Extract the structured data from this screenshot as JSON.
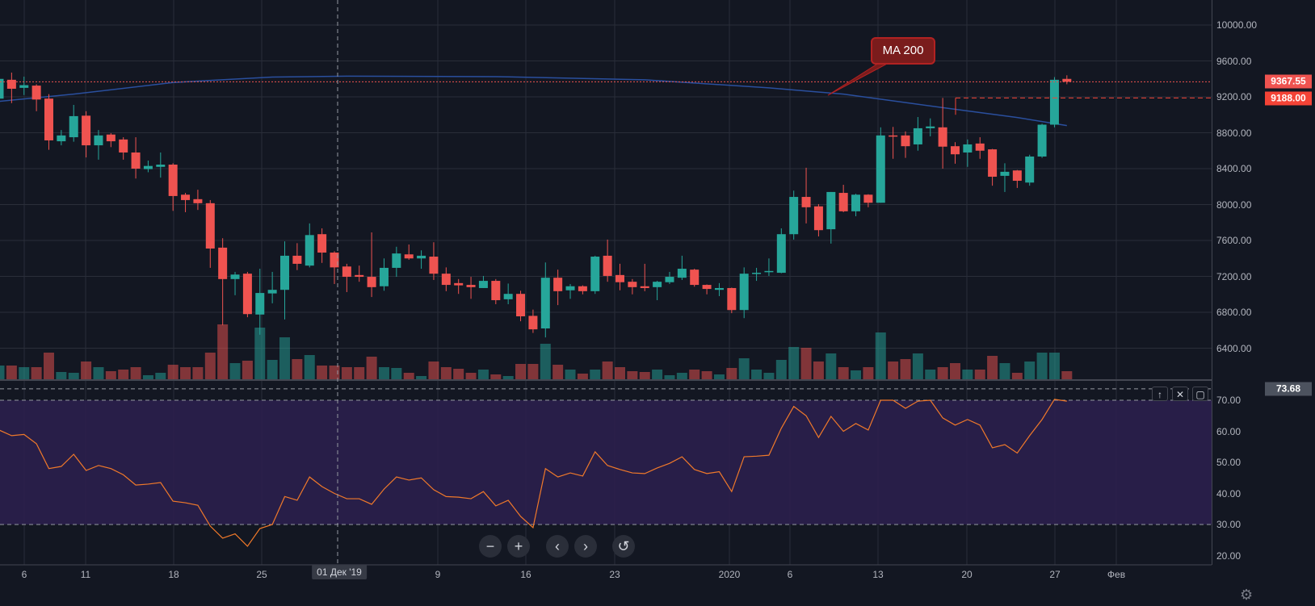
{
  "chart_data": {
    "type": "candlestick",
    "title": "",
    "start_date": "2019-11-04",
    "price_axis": {
      "ticks": [
        "10000.00",
        "9600.00",
        "9200.00",
        "8800.00",
        "8400.00",
        "8000.00",
        "7600.00",
        "7200.00",
        "6800.00",
        "6400.00"
      ],
      "tick_values": [
        10000,
        9600,
        9200,
        8800,
        8400,
        8000,
        7600,
        7200,
        6800,
        6400
      ],
      "range": [
        6000,
        10300
      ]
    },
    "rsi_axis": {
      "ticks": [
        "70.00",
        "60.00",
        "50.00",
        "40.00",
        "30.00",
        "20.00"
      ],
      "tick_values": [
        70,
        60,
        50,
        40,
        30,
        20
      ],
      "upper_band": 70,
      "lower_band": 30
    },
    "x_ticks": [
      "6",
      "11",
      "18",
      "25",
      "01 Дек '19",
      "9",
      "16",
      "23",
      "2020",
      "6",
      "13",
      "20",
      "27",
      "Фев"
    ],
    "last_price": {
      "label": "9367.55",
      "value": 9367.55,
      "color": "#ef5350"
    },
    "level_line": {
      "label": "9188.00",
      "value": 9188.0,
      "color": "#f44336"
    },
    "rsi_crosshair": {
      "label": "73.68",
      "value": 73.68
    },
    "annotation": {
      "text": "MA 200"
    },
    "colors": {
      "up": "#26a69a",
      "down": "#ef5350",
      "ma": "#2a4f9e",
      "rsi": "#f0792a",
      "band": "#2b1f4d",
      "background": "#131722",
      "grid": "#2a2e39"
    },
    "ma200": [
      [
        0,
        9150
      ],
      [
        6,
        9230
      ],
      [
        14,
        9360
      ],
      [
        22,
        9420
      ],
      [
        28,
        9430
      ],
      [
        40,
        9425
      ],
      [
        52,
        9390
      ],
      [
        62,
        9300
      ],
      [
        68,
        9230
      ],
      [
        76,
        9080
      ],
      [
        82,
        8970
      ],
      [
        86,
        8880
      ]
    ],
    "candles": [
      {
        "o": 9180,
        "h": 9450,
        "l": 9150,
        "c": 9400,
        "v": 17,
        "rsi": 60.4
      },
      {
        "o": 9390,
        "h": 9470,
        "l": 9130,
        "c": 9290,
        "v": 17,
        "rsi": 58.6
      },
      {
        "o": 9300,
        "h": 9425,
        "l": 9220,
        "c": 9330,
        "v": 15,
        "rsi": 59
      },
      {
        "o": 9325,
        "h": 9340,
        "l": 9040,
        "c": 9170,
        "v": 15,
        "rsi": 56
      },
      {
        "o": 9180,
        "h": 9230,
        "l": 8610,
        "c": 8715,
        "v": 33,
        "rsi": 48
      },
      {
        "o": 8705,
        "h": 8830,
        "l": 8660,
        "c": 8770,
        "v": 9,
        "rsi": 48.7
      },
      {
        "o": 8750,
        "h": 9110,
        "l": 8700,
        "c": 8985,
        "v": 8,
        "rsi": 52.6
      },
      {
        "o": 8990,
        "h": 9040,
        "l": 8525,
        "c": 8660,
        "v": 22,
        "rsi": 47.4
      },
      {
        "o": 8660,
        "h": 8830,
        "l": 8500,
        "c": 8770,
        "v": 15,
        "rsi": 49
      },
      {
        "o": 8780,
        "h": 8795,
        "l": 8640,
        "c": 8705,
        "v": 10,
        "rsi": 48
      },
      {
        "o": 8725,
        "h": 8750,
        "l": 8500,
        "c": 8580,
        "v": 12,
        "rsi": 46
      },
      {
        "o": 8580,
        "h": 8750,
        "l": 8290,
        "c": 8400,
        "v": 15,
        "rsi": 42.7
      },
      {
        "o": 8395,
        "h": 8490,
        "l": 8360,
        "c": 8430,
        "v": 5,
        "rsi": 43
      },
      {
        "o": 8420,
        "h": 8580,
        "l": 8300,
        "c": 8445,
        "v": 8,
        "rsi": 43.5
      },
      {
        "o": 8445,
        "h": 8460,
        "l": 7930,
        "c": 8095,
        "v": 18,
        "rsi": 37.5
      },
      {
        "o": 8110,
        "h": 8130,
        "l": 7915,
        "c": 8050,
        "v": 15,
        "rsi": 37
      },
      {
        "o": 8060,
        "h": 8165,
        "l": 7940,
        "c": 8015,
        "v": 15,
        "rsi": 36.2
      },
      {
        "o": 8015,
        "h": 8050,
        "l": 7295,
        "c": 7510,
        "v": 33,
        "rsi": 29.5
      },
      {
        "o": 7520,
        "h": 7625,
        "l": 6655,
        "c": 7170,
        "v": 68,
        "rsi": 25.6
      },
      {
        "o": 7170,
        "h": 7250,
        "l": 6990,
        "c": 7220,
        "v": 20,
        "rsi": 27
      },
      {
        "o": 7230,
        "h": 7250,
        "l": 6745,
        "c": 6780,
        "v": 23,
        "rsi": 23
      },
      {
        "o": 6775,
        "h": 7285,
        "l": 6550,
        "c": 7015,
        "v": 64,
        "rsi": 28.7
      },
      {
        "o": 7010,
        "h": 7250,
        "l": 6900,
        "c": 7050,
        "v": 24,
        "rsi": 30
      },
      {
        "o": 7050,
        "h": 7590,
        "l": 6720,
        "c": 7430,
        "v": 52,
        "rsi": 39
      },
      {
        "o": 7430,
        "h": 7570,
        "l": 7270,
        "c": 7340,
        "v": 25,
        "rsi": 37.8
      },
      {
        "o": 7320,
        "h": 7790,
        "l": 7300,
        "c": 7660,
        "v": 30,
        "rsi": 45.3
      },
      {
        "o": 7670,
        "h": 7735,
        "l": 7350,
        "c": 7465,
        "v": 17,
        "rsi": 42.2
      },
      {
        "o": 7465,
        "h": 7480,
        "l": 7115,
        "c": 7300,
        "v": 17,
        "rsi": 40
      },
      {
        "o": 7310,
        "h": 7340,
        "l": 7025,
        "c": 7195,
        "v": 15,
        "rsi": 38.3
      },
      {
        "o": 7215,
        "h": 7320,
        "l": 7140,
        "c": 7195,
        "v": 15,
        "rsi": 38.3
      },
      {
        "o": 7195,
        "h": 7690,
        "l": 6970,
        "c": 7080,
        "v": 28,
        "rsi": 36.5
      },
      {
        "o": 7090,
        "h": 7400,
        "l": 7040,
        "c": 7295,
        "v": 15,
        "rsi": 41.4
      },
      {
        "o": 7295,
        "h": 7530,
        "l": 7195,
        "c": 7455,
        "v": 14,
        "rsi": 45.3
      },
      {
        "o": 7445,
        "h": 7555,
        "l": 7385,
        "c": 7400,
        "v": 8,
        "rsi": 44.3
      },
      {
        "o": 7400,
        "h": 7490,
        "l": 7285,
        "c": 7430,
        "v": 4,
        "rsi": 45
      },
      {
        "o": 7420,
        "h": 7580,
        "l": 7160,
        "c": 7230,
        "v": 22,
        "rsi": 41.2
      },
      {
        "o": 7230,
        "h": 7300,
        "l": 7035,
        "c": 7105,
        "v": 15,
        "rsi": 39
      },
      {
        "o": 7125,
        "h": 7170,
        "l": 7005,
        "c": 7100,
        "v": 13,
        "rsi": 38.8
      },
      {
        "o": 7105,
        "h": 7195,
        "l": 6950,
        "c": 7080,
        "v": 8,
        "rsi": 38.3
      },
      {
        "o": 7070,
        "h": 7205,
        "l": 7070,
        "c": 7150,
        "v": 12,
        "rsi": 40.6
      },
      {
        "o": 7150,
        "h": 7170,
        "l": 6890,
        "c": 6935,
        "v": 6,
        "rsi": 36
      },
      {
        "o": 6945,
        "h": 7120,
        "l": 6890,
        "c": 7005,
        "v": 4,
        "rsi": 37.8
      },
      {
        "o": 7005,
        "h": 7040,
        "l": 6700,
        "c": 6755,
        "v": 19,
        "rsi": 32.6
      },
      {
        "o": 6760,
        "h": 6830,
        "l": 6570,
        "c": 6610,
        "v": 19,
        "rsi": 29
      },
      {
        "o": 6620,
        "h": 7355,
        "l": 6520,
        "c": 7185,
        "v": 44,
        "rsi": 48
      },
      {
        "o": 7185,
        "h": 7275,
        "l": 6880,
        "c": 7035,
        "v": 18,
        "rsi": 45.3
      },
      {
        "o": 7045,
        "h": 7115,
        "l": 6950,
        "c": 7090,
        "v": 12,
        "rsi": 46.6
      },
      {
        "o": 7090,
        "h": 7100,
        "l": 7000,
        "c": 7035,
        "v": 7,
        "rsi": 45.6
      },
      {
        "o": 7035,
        "h": 7430,
        "l": 7005,
        "c": 7420,
        "v": 12,
        "rsi": 53.4
      },
      {
        "o": 7430,
        "h": 7610,
        "l": 7140,
        "c": 7205,
        "v": 22,
        "rsi": 49
      },
      {
        "o": 7215,
        "h": 7340,
        "l": 7045,
        "c": 7135,
        "v": 15,
        "rsi": 47.7
      },
      {
        "o": 7140,
        "h": 7170,
        "l": 7000,
        "c": 7080,
        "v": 10,
        "rsi": 46.6
      },
      {
        "o": 7090,
        "h": 7340,
        "l": 7035,
        "c": 7070,
        "v": 9,
        "rsi": 46.4
      },
      {
        "o": 7080,
        "h": 7150,
        "l": 6935,
        "c": 7140,
        "v": 12,
        "rsi": 48.2
      },
      {
        "o": 7135,
        "h": 7250,
        "l": 7115,
        "c": 7195,
        "v": 5,
        "rsi": 49.7
      },
      {
        "o": 7185,
        "h": 7430,
        "l": 7160,
        "c": 7285,
        "v": 8,
        "rsi": 51.8
      },
      {
        "o": 7275,
        "h": 7285,
        "l": 7085,
        "c": 7105,
        "v": 12,
        "rsi": 47.7
      },
      {
        "o": 7105,
        "h": 7110,
        "l": 7000,
        "c": 7060,
        "v": 10,
        "rsi": 46.4
      },
      {
        "o": 7050,
        "h": 7125,
        "l": 6980,
        "c": 7070,
        "v": 6,
        "rsi": 47
      },
      {
        "o": 7070,
        "h": 7075,
        "l": 6790,
        "c": 6825,
        "v": 14,
        "rsi": 40.6
      },
      {
        "o": 6825,
        "h": 7300,
        "l": 6735,
        "c": 7230,
        "v": 26,
        "rsi": 51.8
      },
      {
        "o": 7230,
        "h": 7295,
        "l": 7150,
        "c": 7240,
        "v": 12,
        "rsi": 52
      },
      {
        "o": 7250,
        "h": 7400,
        "l": 7205,
        "c": 7260,
        "v": 8,
        "rsi": 52.3
      },
      {
        "o": 7240,
        "h": 7735,
        "l": 7235,
        "c": 7670,
        "v": 24,
        "rsi": 61
      },
      {
        "o": 7670,
        "h": 8155,
        "l": 7610,
        "c": 8085,
        "v": 40,
        "rsi": 68
      },
      {
        "o": 8085,
        "h": 8410,
        "l": 7790,
        "c": 7970,
        "v": 39,
        "rsi": 65
      },
      {
        "o": 7980,
        "h": 8005,
        "l": 7645,
        "c": 7715,
        "v": 22,
        "rsi": 58
      },
      {
        "o": 7725,
        "h": 8140,
        "l": 7565,
        "c": 8140,
        "v": 32,
        "rsi": 64.8
      },
      {
        "o": 8130,
        "h": 8220,
        "l": 7915,
        "c": 7925,
        "v": 15,
        "rsi": 60
      },
      {
        "o": 7925,
        "h": 8120,
        "l": 7870,
        "c": 8110,
        "v": 11,
        "rsi": 62.5
      },
      {
        "o": 8110,
        "h": 8115,
        "l": 7970,
        "c": 8020,
        "v": 15,
        "rsi": 60.4
      },
      {
        "o": 8020,
        "h": 8860,
        "l": 8020,
        "c": 8770,
        "v": 58,
        "rsi": 70
      },
      {
        "o": 8770,
        "h": 8865,
        "l": 8510,
        "c": 8760,
        "v": 22,
        "rsi": 70
      },
      {
        "o": 8770,
        "h": 8815,
        "l": 8520,
        "c": 8650,
        "v": 25,
        "rsi": 67.4
      },
      {
        "o": 8670,
        "h": 8975,
        "l": 8600,
        "c": 8850,
        "v": 32,
        "rsi": 69.7
      },
      {
        "o": 8850,
        "h": 8960,
        "l": 8760,
        "c": 8870,
        "v": 12,
        "rsi": 70
      },
      {
        "o": 8860,
        "h": 9188,
        "l": 8400,
        "c": 8645,
        "v": 15,
        "rsi": 64.3
      },
      {
        "o": 8650,
        "h": 8695,
        "l": 8455,
        "c": 8560,
        "v": 20,
        "rsi": 62
      },
      {
        "o": 8580,
        "h": 8725,
        "l": 8420,
        "c": 8670,
        "v": 12,
        "rsi": 63.8
      },
      {
        "o": 8680,
        "h": 8750,
        "l": 8510,
        "c": 8600,
        "v": 12,
        "rsi": 62
      },
      {
        "o": 8615,
        "h": 8620,
        "l": 8210,
        "c": 8310,
        "v": 29,
        "rsi": 54.7
      },
      {
        "o": 8320,
        "h": 8460,
        "l": 8140,
        "c": 8365,
        "v": 20,
        "rsi": 55.7
      },
      {
        "o": 8380,
        "h": 8385,
        "l": 8185,
        "c": 8265,
        "v": 8,
        "rsi": 53
      },
      {
        "o": 8245,
        "h": 8555,
        "l": 8210,
        "c": 8535,
        "v": 22,
        "rsi": 58.6
      },
      {
        "o": 8535,
        "h": 8900,
        "l": 8520,
        "c": 8890,
        "v": 33,
        "rsi": 63.8
      },
      {
        "o": 8890,
        "h": 9420,
        "l": 8860,
        "c": 9390,
        "v": 33,
        "rsi": 70.3
      },
      {
        "o": 9400,
        "h": 9440,
        "l": 9340,
        "c": 9368,
        "v": 10,
        "rsi": 69.7
      }
    ]
  },
  "toolbar": {
    "zoom_out": "−",
    "zoom_in": "+",
    "scroll_left": "‹",
    "scroll_right": "›",
    "reset": "↺"
  },
  "pane_controls": {
    "move_up": "↑",
    "close": "✕",
    "maximize": "▢"
  },
  "settings_icon": "⚙"
}
